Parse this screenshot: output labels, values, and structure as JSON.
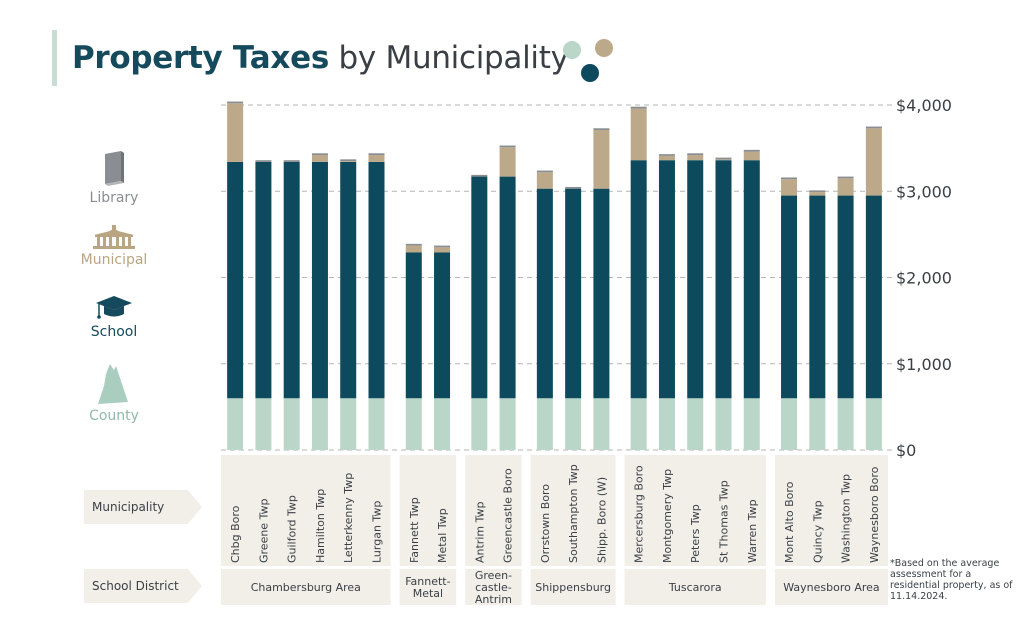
{
  "title": {
    "bold": "Property Taxes",
    "rest": "by Municipality"
  },
  "legend": [
    {
      "label": "Library",
      "color": "#8a8d91",
      "icon": "book-icon"
    },
    {
      "label": "Municipal",
      "color": "#b9a582",
      "icon": "municipal-building-icon"
    },
    {
      "label": "School",
      "color": "#154a5c",
      "icon": "graduation-cap-icon"
    },
    {
      "label": "County",
      "color": "#a9cdbf",
      "icon": "county-map-icon"
    }
  ],
  "row_labels": {
    "municipality": "Municipality",
    "school_district": "School District"
  },
  "footnote": "*Based on the average assessment for a residential property, as of 11.14.2024.",
  "chart_data": {
    "type": "bar",
    "stacked": true,
    "y_axis_position": "right",
    "ylim": [
      0,
      4000
    ],
    "yticks": [
      0,
      1000,
      2000,
      3000,
      4000
    ],
    "ytick_labels": [
      "$0",
      "$1,000",
      "$2,000",
      "$3,000",
      "$4,000"
    ],
    "grid": true,
    "categories": [
      "Chbg Boro",
      "Greene Twp",
      "Guilford Twp",
      "Hamilton Twp",
      "Letterkenny Twp",
      "Lurgan Twp",
      "Fannett Twp",
      "Metal Twp",
      "Antrim Twp",
      "Greencastle Boro",
      "Orrstown Boro",
      "Southampton Twp",
      "Shipp. Boro (W)",
      "Mercersburg Boro",
      "Montgomery Twp",
      "Peters Twp",
      "St Thomas Twp",
      "Warren Twp",
      "Mont Alto Boro",
      "Quincy Twp",
      "Washington Twp",
      "Waynesboro Boro"
    ],
    "groups": [
      {
        "label": "Chambersburg Area",
        "count": 6
      },
      {
        "label": "Fannett-\nMetal",
        "count": 2
      },
      {
        "label": "Green-\ncastle-\nAntrim",
        "count": 2
      },
      {
        "label": "Shippensburg",
        "count": 3
      },
      {
        "label": "Tuscarora",
        "count": 5
      },
      {
        "label": "Waynesboro Area",
        "count": 4
      }
    ],
    "series": [
      {
        "name": "County",
        "color": "#b9d6c8",
        "values": [
          600,
          600,
          600,
          600,
          600,
          600,
          600,
          600,
          600,
          600,
          600,
          600,
          600,
          600,
          600,
          600,
          600,
          600,
          600,
          600,
          600,
          600
        ]
      },
      {
        "name": "School",
        "color": "#0d4a5e",
        "values": [
          2740,
          2740,
          2740,
          2740,
          2740,
          2740,
          1690,
          1690,
          2570,
          2570,
          2430,
          2430,
          2430,
          2760,
          2760,
          2760,
          2760,
          2760,
          2350,
          2350,
          2350,
          2350
        ]
      },
      {
        "name": "Municipal",
        "color": "#bca98a",
        "values": [
          680,
          0,
          0,
          80,
          10,
          80,
          80,
          60,
          0,
          340,
          190,
          0,
          680,
          600,
          50,
          60,
          10,
          100,
          190,
          40,
          200,
          780
        ]
      },
      {
        "name": "Library",
        "color": "#8a8d91",
        "values": [
          20,
          20,
          20,
          20,
          20,
          20,
          20,
          20,
          20,
          20,
          20,
          20,
          20,
          20,
          20,
          20,
          20,
          20,
          20,
          20,
          20,
          20
        ]
      }
    ]
  }
}
